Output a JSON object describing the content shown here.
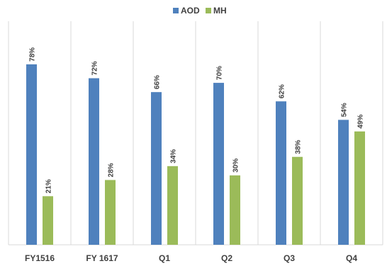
{
  "chart_data": {
    "type": "bar",
    "categories": [
      "FY1516",
      "FY 1617",
      "Q1",
      "Q2",
      "Q3",
      "Q4"
    ],
    "series": [
      {
        "name": "AOD",
        "values": [
          78,
          72,
          66,
          70,
          62,
          54
        ],
        "labels": [
          "78%",
          "72%",
          "66%",
          "70%",
          "62%",
          "54%"
        ],
        "color": "#4f81bd"
      },
      {
        "name": "MH",
        "values": [
          21,
          28,
          34,
          30,
          38,
          49
        ],
        "labels": [
          "21%",
          "28%",
          "34%",
          "30%",
          "38%",
          "49%"
        ],
        "color": "#9bbb59"
      }
    ],
    "ylim": [
      0,
      100
    ],
    "grid": false,
    "category_separators": true,
    "legend_position": "top-center"
  }
}
